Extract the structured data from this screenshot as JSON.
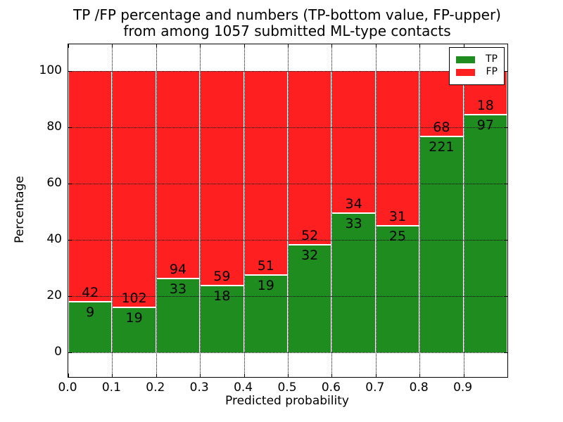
{
  "chart_data": {
    "type": "bar",
    "stacked": true,
    "normalized": "percent_of_bin",
    "title_lines": [
      "TP /FP percentage and numbers (TP-bottom value, FP-upper)",
      "from among 1057 submitted ML-type contacts"
    ],
    "xlabel": "Predicted probability",
    "ylabel": "Percentage",
    "total_contacts": 1057,
    "bin_edges": [
      0.0,
      0.1,
      0.2,
      0.3,
      0.4,
      0.5,
      0.6,
      0.7,
      0.8,
      0.9,
      1.0
    ],
    "xticks": [
      "0.0",
      "0.1",
      "0.2",
      "0.3",
      "0.4",
      "0.5",
      "0.6",
      "0.7",
      "0.8",
      "0.9"
    ],
    "yticks": [
      0,
      20,
      40,
      60,
      80,
      100
    ],
    "xlim": [
      0.0,
      1.0
    ],
    "ylim": [
      -8.75,
      109.5
    ],
    "grid": true,
    "series": [
      {
        "name": "TP",
        "color": "#1f8c1f",
        "counts": [
          9,
          19,
          33,
          18,
          19,
          32,
          33,
          25,
          221,
          97
        ]
      },
      {
        "name": "FP",
        "color": "#fe2020",
        "counts": [
          42,
          102,
          94,
          59,
          51,
          52,
          34,
          31,
          68,
          18
        ]
      }
    ],
    "tp_percent_by_bin": [
      17.6,
      15.7,
      26.0,
      23.4,
      27.1,
      38.1,
      49.3,
      44.6,
      76.5,
      84.3
    ],
    "legend": {
      "position": "upper right",
      "entries": [
        {
          "label": "TP",
          "color": "#1f8c1f"
        },
        {
          "label": "FP",
          "color": "#fe2020"
        }
      ]
    }
  }
}
